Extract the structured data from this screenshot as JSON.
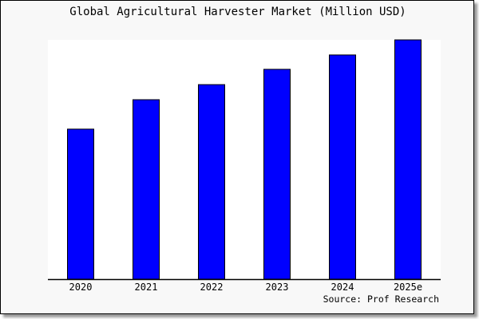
{
  "chart_data": {
    "type": "bar",
    "title": "Global Agricultural Harvester Market (Million USD)",
    "categories": [
      "2020",
      "2021",
      "2022",
      "2023",
      "2024",
      "2025e"
    ],
    "values": [
      62.7,
      75.0,
      81.3,
      87.7,
      93.7,
      100
    ],
    "ylim": [
      0,
      100
    ],
    "xlabel": "",
    "ylabel": "",
    "grid": false,
    "legend": "none",
    "source": "Source: Prof Research",
    "colors": {
      "bar": "#0000ff",
      "bar_outline": "#000000",
      "plot_bg": "#ffffff",
      "page_bg": "#f8f8f8"
    }
  }
}
